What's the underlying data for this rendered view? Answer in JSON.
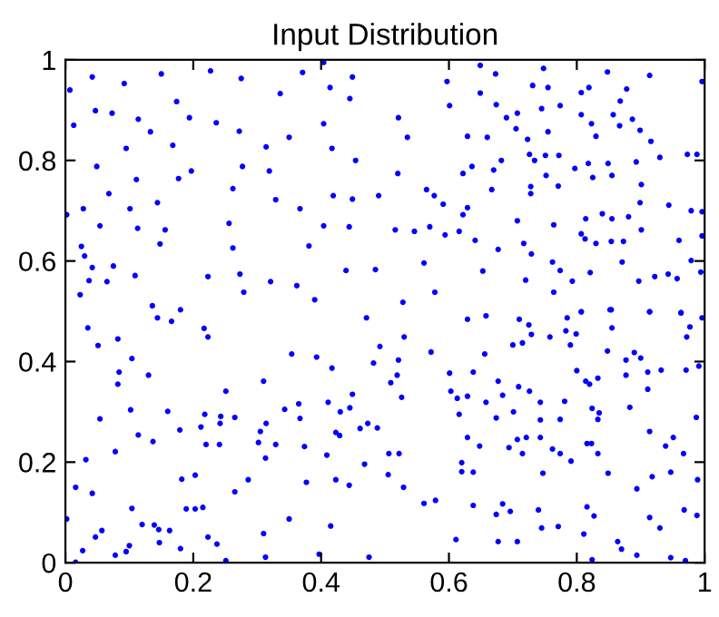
{
  "chart_data": {
    "type": "scatter",
    "title": "Input Distribution",
    "xlim": [
      0,
      1
    ],
    "ylim": [
      0,
      1
    ],
    "xticks": [
      0,
      0.2,
      0.4,
      0.6,
      0.8,
      1
    ],
    "yticks": [
      0,
      0.2,
      0.4,
      0.6,
      0.8,
      1
    ],
    "grid": false,
    "marker": "circle",
    "series": [
      {
        "color": "#0000ff",
        "x": [
          0.007,
          0.042,
          0.092,
          0.15,
          0.047,
          0.073,
          0.013,
          0.114,
          0.174,
          0.194,
          0.227,
          0.275,
          0.236,
          0.272,
          0.336,
          0.371,
          0.404,
          0.449,
          0.414,
          0.445,
          0.404,
          0.095,
          0.133,
          0.168,
          0.049,
          0.111,
          0.177,
          0.197,
          0.277,
          0.319,
          0.314,
          0.35,
          0.417,
          0.454,
          0.262,
          0.329,
          0.367,
          0.419,
          0.449,
          0.49,
          0.028,
          0.068,
          0.101,
          0.144,
          0.054,
          0.113,
          0.156,
          0.256,
          0.404,
          0.444,
          0.025,
          0.03,
          0.042,
          0.075,
          0.148,
          0.262,
          0.381,
          0.037,
          0.065,
          0.109,
          0.223,
          0.273,
          0.279,
          0.321,
          0.362,
          0.439,
          0.485,
          0.023,
          0.136,
          0.18,
          0.39,
          0.002,
          0.597,
          0.649,
          0.673,
          0.748,
          0.848,
          0.914,
          0.996,
          0.601,
          0.649,
          0.674,
          0.731,
          0.755,
          0.774,
          0.807,
          0.819,
          0.868,
          0.878,
          0.521,
          0.535,
          0.69,
          0.707,
          0.745,
          0.807,
          0.823,
          0.857,
          0.887,
          0.629,
          0.66,
          0.705,
          0.723,
          0.755,
          0.83,
          0.867,
          0.899,
          0.916,
          0.52,
          0.622,
          0.636,
          0.67,
          0.682,
          0.726,
          0.734,
          0.751,
          0.772,
          0.797,
          0.818,
          0.825,
          0.849,
          0.855,
          0.893,
          0.93,
          0.973,
          0.988,
          0.752,
          0.771,
          0.728,
          0.728,
          0.667,
          0.565,
          0.577,
          0.591,
          0.629,
          0.622,
          0.707,
          0.764,
          0.814,
          0.84,
          0.855,
          0.881,
          0.901,
          0.899,
          0.944,
          0.979,
          0.996,
          0.516,
          0.546,
          0.57,
          0.594,
          0.616,
          0.641,
          0.717,
          0.807,
          0.813,
          0.83,
          0.854,
          0.873,
          0.901,
          0.96,
          0.996,
          0.677,
          0.729,
          0.762,
          0.561,
          0.653,
          0.72,
          0.774,
          0.793,
          0.821,
          0.871,
          0.897,
          0.922,
          0.943,
          0.957,
          0.979,
          0.994,
          0.578,
          0.528,
          0.764,
          0.807,
          0.854,
          0.914,
          0.963,
          0.035,
          0.051,
          0.082,
          0.104,
          0.084,
          0.082,
          0.13,
          0.217,
          0.223,
          0.166,
          0.144,
          0.354,
          0.393,
          0.417,
          0.471,
          0.492,
          0.482,
          0.251,
          0.31,
          0.102,
          0.054,
          0.16,
          0.218,
          0.243,
          0.265,
          0.179,
          0.212,
          0.242,
          0.114,
          0.137,
          0.22,
          0.241,
          0.078,
          0.032,
          0.314,
          0.305,
          0.302,
          0.329,
          0.313,
          0.343,
          0.365,
          0.367,
          0.374,
          0.411,
          0.449,
          0.43,
          0.445,
          0.423,
          0.429,
          0.461,
          0.473,
          0.409,
          0.016,
          0.042,
          0.182,
          0.203,
          0.286,
          0.265,
          0.377,
          0.423,
          0.444,
          0.468,
          0.189,
          0.203,
          0.215,
          0.104,
          0.002,
          0.12,
          0.139,
          0.146,
          0.163,
          0.057,
          0.047,
          0.31,
          0.35,
          0.415,
          0.147,
          0.18,
          0.223,
          0.237,
          0.027,
          0.1,
          0.095,
          0.078,
          0.016,
          0.251,
          0.313,
          0.397,
          0.475,
          0.53,
          0.572,
          0.629,
          0.658,
          0.71,
          0.725,
          0.7,
          0.715,
          0.729,
          0.758,
          0.785,
          0.807,
          0.783,
          0.799,
          0.79,
          0.852,
          0.855,
          0.848,
          0.914,
          0.963,
          0.977,
          0.996,
          0.972,
          0.656,
          0.521,
          0.526,
          0.509,
          0.519,
          0.601,
          0.603,
          0.613,
          0.629,
          0.638,
          0.616,
          0.658,
          0.677,
          0.684,
          0.709,
          0.726,
          0.701,
          0.674,
          0.743,
          0.743,
          0.781,
          0.774,
          0.8,
          0.814,
          0.82,
          0.833,
          0.824,
          0.835,
          0.833,
          0.877,
          0.877,
          0.89,
          0.9,
          0.911,
          0.911,
          0.932,
          0.971,
          0.991,
          0.883,
          0.987,
          0.488,
          0.506,
          0.522,
          0.505,
          0.529,
          0.629,
          0.648,
          0.62,
          0.62,
          0.638,
          0.694,
          0.707,
          0.715,
          0.721,
          0.743,
          0.762,
          0.774,
          0.791,
          0.816,
          0.823,
          0.833,
          0.747,
          0.849,
          0.914,
          0.939,
          0.951,
          0.967,
          0.918,
          0.947,
          0.989,
          0.894,
          0.561,
          0.579,
          0.638,
          0.674,
          0.684,
          0.696,
          0.74,
          0.745,
          0.771,
          0.816,
          0.827,
          0.811,
          0.914,
          0.93,
          0.968,
          0.988,
          0.611,
          0.677,
          0.707,
          0.864,
          0.87,
          0.894,
          0.824,
          0.947,
          0.97
        ],
        "values": [
          0.94,
          0.966,
          0.953,
          0.972,
          0.899,
          0.894,
          0.87,
          0.882,
          0.917,
          0.885,
          0.978,
          0.963,
          0.875,
          0.858,
          0.933,
          0.975,
          0.995,
          0.966,
          0.945,
          0.923,
          0.873,
          0.824,
          0.857,
          0.83,
          0.788,
          0.762,
          0.764,
          0.779,
          0.788,
          0.779,
          0.827,
          0.846,
          0.824,
          0.8,
          0.744,
          0.722,
          0.704,
          0.73,
          0.723,
          0.73,
          0.704,
          0.734,
          0.704,
          0.716,
          0.67,
          0.665,
          0.662,
          0.675,
          0.67,
          0.668,
          0.629,
          0.61,
          0.587,
          0.59,
          0.634,
          0.626,
          0.63,
          0.561,
          0.559,
          0.571,
          0.569,
          0.574,
          0.538,
          0.559,
          0.551,
          0.581,
          0.583,
          0.533,
          0.511,
          0.503,
          0.523,
          0.692,
          0.957,
          0.989,
          0.972,
          0.983,
          0.976,
          0.969,
          0.957,
          0.909,
          0.934,
          0.911,
          0.949,
          0.945,
          0.909,
          0.935,
          0.945,
          0.918,
          0.942,
          0.885,
          0.846,
          0.885,
          0.894,
          0.903,
          0.891,
          0.873,
          0.891,
          0.882,
          0.848,
          0.846,
          0.863,
          0.842,
          0.857,
          0.848,
          0.869,
          0.86,
          0.838,
          0.774,
          0.774,
          0.788,
          0.781,
          0.8,
          0.812,
          0.8,
          0.81,
          0.81,
          0.784,
          0.794,
          0.766,
          0.794,
          0.77,
          0.797,
          0.806,
          0.812,
          0.812,
          0.77,
          0.749,
          0.748,
          0.734,
          0.742,
          0.742,
          0.73,
          0.713,
          0.706,
          0.692,
          0.68,
          0.672,
          0.684,
          0.694,
          0.684,
          0.688,
          0.752,
          0.716,
          0.711,
          0.7,
          0.698,
          0.662,
          0.659,
          0.668,
          0.652,
          0.659,
          0.641,
          0.635,
          0.654,
          0.644,
          0.635,
          0.639,
          0.639,
          0.662,
          0.641,
          0.65,
          0.623,
          0.614,
          0.598,
          0.596,
          0.58,
          0.562,
          0.581,
          0.56,
          0.577,
          0.598,
          0.56,
          0.569,
          0.574,
          0.565,
          0.601,
          0.578,
          0.538,
          0.518,
          0.538,
          0.499,
          0.503,
          0.499,
          0.497,
          0.467,
          0.432,
          0.445,
          0.406,
          0.379,
          0.355,
          0.373,
          0.466,
          0.449,
          0.48,
          0.487,
          0.415,
          0.409,
          0.387,
          0.487,
          0.43,
          0.397,
          0.341,
          0.361,
          0.304,
          0.286,
          0.301,
          0.295,
          0.291,
          0.289,
          0.264,
          0.27,
          0.277,
          0.254,
          0.241,
          0.235,
          0.235,
          0.221,
          0.205,
          0.277,
          0.261,
          0.239,
          0.235,
          0.208,
          0.305,
          0.316,
          0.287,
          0.231,
          0.319,
          0.335,
          0.3,
          0.308,
          0.259,
          0.253,
          0.267,
          0.277,
          0.214,
          0.15,
          0.138,
          0.166,
          0.174,
          0.165,
          0.141,
          0.16,
          0.165,
          0.154,
          0.196,
          0.107,
          0.107,
          0.11,
          0.108,
          0.087,
          0.076,
          0.075,
          0.066,
          0.064,
          0.064,
          0.051,
          0.058,
          0.087,
          0.073,
          0.04,
          0.028,
          0.051,
          0.037,
          0.024,
          0.034,
          0.022,
          0.015,
          0.001,
          0.004,
          0.011,
          0.017,
          0.011,
          0.449,
          0.419,
          0.484,
          0.491,
          0.484,
          0.473,
          0.433,
          0.437,
          0.454,
          0.449,
          0.487,
          0.499,
          0.461,
          0.455,
          0.433,
          0.503,
          0.467,
          0.421,
          0.499,
          0.497,
          0.469,
          0.487,
          0.449,
          0.415,
          0.403,
          0.329,
          0.358,
          0.373,
          0.377,
          0.341,
          0.327,
          0.331,
          0.379,
          0.295,
          0.319,
          0.361,
          0.333,
          0.35,
          0.341,
          0.3,
          0.288,
          0.319,
          0.284,
          0.321,
          0.285,
          0.382,
          0.361,
          0.355,
          0.367,
          0.307,
          0.298,
          0.285,
          0.403,
          0.373,
          0.418,
          0.407,
          0.379,
          0.345,
          0.383,
          0.383,
          0.391,
          0.309,
          0.289,
          0.268,
          0.217,
          0.217,
          0.175,
          0.15,
          0.249,
          0.232,
          0.199,
          0.181,
          0.18,
          0.229,
          0.245,
          0.217,
          0.249,
          0.249,
          0.226,
          0.217,
          0.202,
          0.237,
          0.237,
          0.217,
          0.178,
          0.178,
          0.261,
          0.232,
          0.249,
          0.217,
          0.171,
          0.18,
          0.165,
          0.147,
          0.118,
          0.124,
          0.114,
          0.096,
          0.117,
          0.102,
          0.105,
          0.069,
          0.072,
          0.111,
          0.093,
          0.057,
          0.09,
          0.069,
          0.105,
          0.094,
          0.046,
          0.042,
          0.042,
          0.042,
          0.027,
          0.015,
          0.006,
          0.01,
          0.004
        ]
      }
    ]
  }
}
